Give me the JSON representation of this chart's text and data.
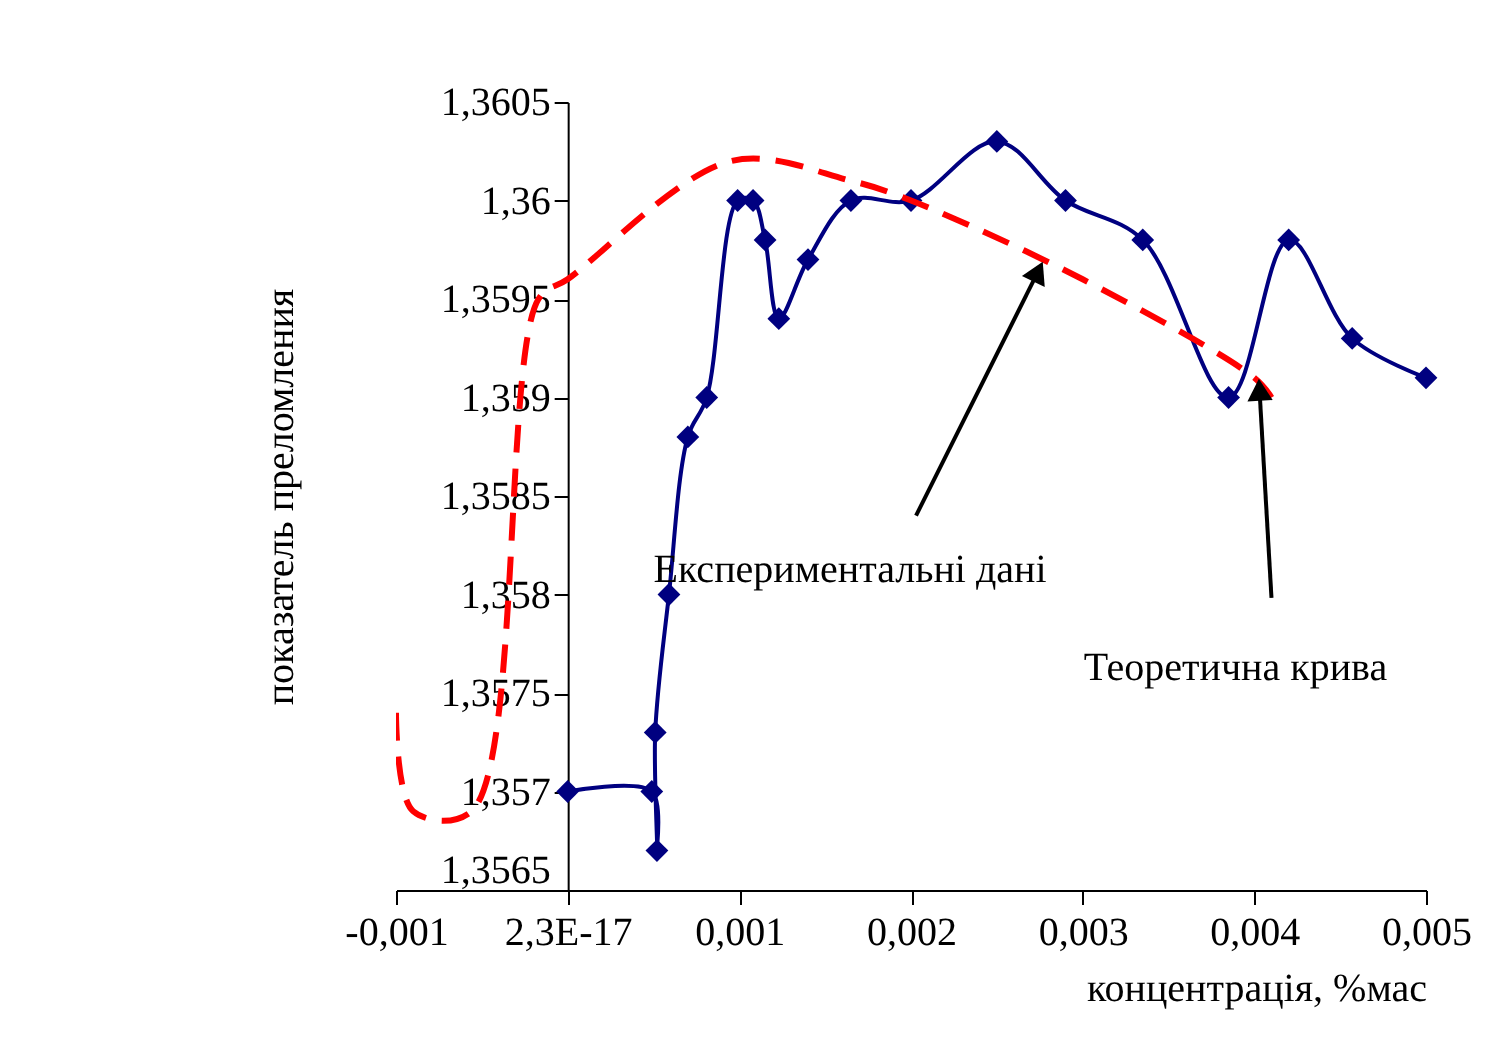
{
  "chart_data": {
    "type": "line",
    "xlabel": "концентрація, %мас",
    "ylabel": "показатель преломления",
    "xlim": [
      -0.001,
      0.005
    ],
    "ylim": [
      1.3565,
      1.3605
    ],
    "xticks": [
      {
        "value": -0.001,
        "label": "-0,001"
      },
      {
        "value": 0,
        "label": "2,3E-17"
      },
      {
        "value": 0.001,
        "label": "0,001"
      },
      {
        "value": 0.002,
        "label": "0,002"
      },
      {
        "value": 0.003,
        "label": "0,003"
      },
      {
        "value": 0.004,
        "label": "0,004"
      },
      {
        "value": 0.005,
        "label": "0,005"
      }
    ],
    "yticks": [
      {
        "value": 1.3565,
        "label": "1,3565"
      },
      {
        "value": 1.357,
        "label": "1,357"
      },
      {
        "value": 1.3575,
        "label": "1,3575"
      },
      {
        "value": 1.358,
        "label": "1,358"
      },
      {
        "value": 1.3585,
        "label": "1,3585"
      },
      {
        "value": 1.359,
        "label": "1,359"
      },
      {
        "value": 1.3595,
        "label": "1,3595"
      },
      {
        "value": 1.36,
        "label": "1,36"
      },
      {
        "value": 1.3605,
        "label": "1,3605"
      }
    ],
    "grid": false,
    "series": [
      {
        "color": "#000080",
        "marker": "diamond",
        "line_style": "solid",
        "x": [
          0,
          0.00049,
          0.00052,
          0.00051,
          0.00059,
          0.0007,
          0.00081,
          0.00099,
          0.00108,
          0.00115,
          0.00123,
          0.0014,
          0.00165,
          0.002,
          0.0025,
          0.0029,
          0.00335,
          0.00385,
          0.0042,
          0.00457,
          0.005
        ],
        "values": [
          1.357,
          1.357,
          1.3567,
          1.3573,
          1.358,
          1.3588,
          1.359,
          1.36,
          1.36,
          1.3598,
          1.3594,
          1.3597,
          1.36,
          1.36,
          1.3603,
          1.36,
          1.3598,
          1.359,
          1.3598,
          1.3593,
          1.3591
        ]
      },
      {
        "color": "#ff0000",
        "marker": "none",
        "line_style": "dashed",
        "x": [
          -0.001,
          -0.0009,
          -0.00056,
          -0.00017,
          0,
          0.00095,
          0.00165,
          0.002,
          0.003,
          0.004,
          0.0041
        ],
        "values": [
          1.3574,
          1.3569,
          1.3569,
          1.3595,
          1.3596,
          1.3602,
          1.3601,
          1.36,
          1.3596,
          1.3591,
          1.359
        ]
      }
    ],
    "annotations": [
      {
        "text": "Експериментальні дані",
        "x": 0.00274,
        "y": 1.3597
      },
      {
        "text": "Теоретична крива",
        "x": 0.00403,
        "y": 1.3591
      }
    ]
  }
}
